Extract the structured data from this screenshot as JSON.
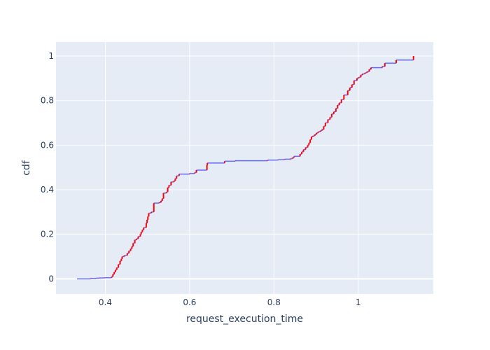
{
  "chart_data": {
    "type": "line",
    "title": "",
    "xlabel": "request_execution_time",
    "ylabel": "cdf",
    "xlim": [
      0.283,
      1.178
    ],
    "ylim": [
      -0.068,
      1.063
    ],
    "x_ticks": [
      0.4,
      0.6,
      0.8,
      1.0
    ],
    "x_tick_labels": [
      "0.4",
      "0.6",
      "0.8",
      "1"
    ],
    "y_ticks": [
      0,
      0.2,
      0.4,
      0.6,
      0.8,
      1.0
    ],
    "y_tick_labels": [
      "0",
      "0.2",
      "0.4",
      "0.6",
      "0.8",
      "1"
    ],
    "grid": true,
    "legend": "none",
    "colors": {
      "plot_bg": "#e5ecf6",
      "grid": "#ffffff",
      "step_line": "#636efa",
      "jump_marks": "#ff0000",
      "text": "#2a3f5f"
    },
    "series": [
      {
        "x": [
          0.333,
          0.365,
          0.378,
          0.385,
          0.398,
          0.415,
          0.418,
          0.421,
          0.424,
          0.427,
          0.431,
          0.435,
          0.438,
          0.44,
          0.445,
          0.452,
          0.456,
          0.46,
          0.463,
          0.466,
          0.47,
          0.474,
          0.478,
          0.483,
          0.485,
          0.488,
          0.491,
          0.497,
          0.499,
          0.501,
          0.503,
          0.509,
          0.515,
          0.528,
          0.532,
          0.535,
          0.538,
          0.545,
          0.548,
          0.551,
          0.556,
          0.563,
          0.566,
          0.569,
          0.575,
          0.6,
          0.612,
          0.616,
          0.641,
          0.642,
          0.683,
          0.708,
          0.785,
          0.81,
          0.825,
          0.84,
          0.845,
          0.848,
          0.862,
          0.866,
          0.87,
          0.875,
          0.88,
          0.883,
          0.886,
          0.889,
          0.893,
          0.897,
          0.901,
          0.905,
          0.91,
          0.914,
          0.918,
          0.922,
          0.928,
          0.933,
          0.937,
          0.942,
          0.947,
          0.951,
          0.955,
          0.96,
          0.966,
          0.975,
          0.98,
          0.985,
          0.99,
          0.997,
          1.001,
          1.006,
          1.01,
          1.016,
          1.021,
          1.026,
          1.03,
          1.057,
          1.063,
          1.09,
          1.131
        ],
        "y": [
          0.0,
          0.002,
          0.003,
          0.004,
          0.005,
          0.01,
          0.02,
          0.03,
          0.04,
          0.05,
          0.065,
          0.08,
          0.09,
          0.1,
          0.105,
          0.115,
          0.125,
          0.135,
          0.145,
          0.16,
          0.175,
          0.18,
          0.19,
          0.2,
          0.21,
          0.22,
          0.23,
          0.25,
          0.265,
          0.28,
          0.295,
          0.3,
          0.34,
          0.343,
          0.35,
          0.36,
          0.385,
          0.39,
          0.41,
          0.42,
          0.435,
          0.44,
          0.45,
          0.462,
          0.47,
          0.473,
          0.477,
          0.488,
          0.51,
          0.52,
          0.528,
          0.53,
          0.533,
          0.535,
          0.537,
          0.54,
          0.545,
          0.55,
          0.56,
          0.57,
          0.58,
          0.59,
          0.6,
          0.61,
          0.625,
          0.638,
          0.642,
          0.648,
          0.655,
          0.66,
          0.665,
          0.67,
          0.685,
          0.7,
          0.715,
          0.725,
          0.74,
          0.75,
          0.765,
          0.78,
          0.79,
          0.805,
          0.825,
          0.845,
          0.858,
          0.872,
          0.89,
          0.9,
          0.905,
          0.915,
          0.92,
          0.925,
          0.93,
          0.94,
          0.948,
          0.953,
          0.968,
          0.982,
          1.0
        ]
      }
    ]
  }
}
